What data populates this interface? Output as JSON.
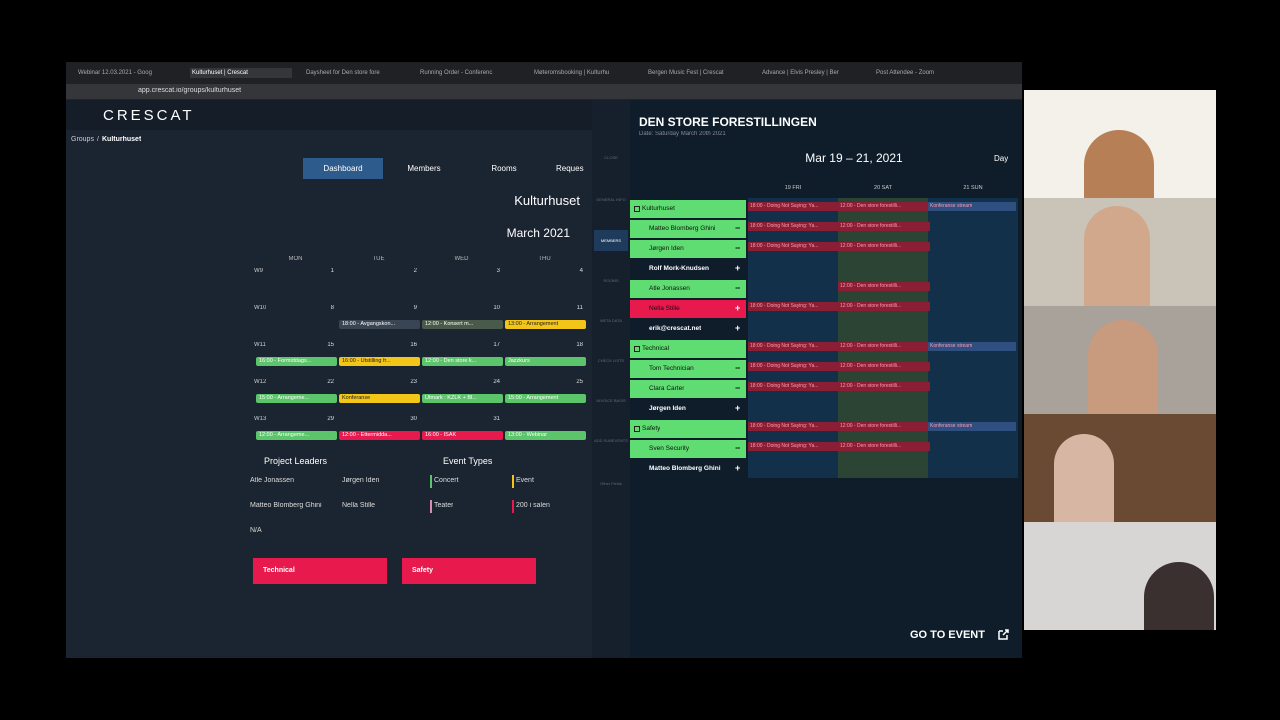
{
  "browser": {
    "tabs": [
      "Webinar 12.03.2021 - Goog",
      "Kulturhuset | Crescat",
      "Daysheet for Den store fore",
      "Running Order - Conferenc",
      "Møteromsbooking | Kulturhu",
      "Bergen Music Fest | Crescat",
      "Advance | Elvis Presley | Ber",
      "Post Attendee - Zoom"
    ],
    "url": "app.crescat.io/groups/kulturhuset"
  },
  "app": {
    "logo": "CRESCAT",
    "breadcrumb": {
      "parent": "Groups",
      "separator": "/",
      "current": "Kulturhuset"
    },
    "nav": [
      "Dashboard",
      "Members",
      "Rooms",
      "Reques"
    ],
    "group_title": "Kulturhuset"
  },
  "calendar": {
    "month": "March 2021",
    "days": [
      "MON",
      "TUE",
      "WED",
      "THU"
    ],
    "weeks": [
      {
        "label": "W9",
        "dates": [
          "1",
          "2",
          "3",
          "4"
        ],
        "events": [
          null,
          null,
          null,
          null
        ]
      },
      {
        "label": "W10",
        "dates": [
          "8",
          "9",
          "10",
          "11"
        ],
        "events": [
          null,
          {
            "text": "18:00 - Avgangskon...",
            "color": "#3a4554"
          },
          {
            "text": "12:00 - Konsert m...",
            "color": "#4a5a4a"
          },
          {
            "text": "13:00 - Arrangement",
            "color": "#f2c518"
          }
        ]
      },
      {
        "label": "W11",
        "dates": [
          "15",
          "16",
          "17",
          "18"
        ],
        "events": [
          {
            "text": "16:00 - Formiddags...",
            "color": "#5cc46a"
          },
          {
            "text": "16:00 - Utstilling fr...",
            "color": "#f2c518"
          },
          {
            "text": "12:00 - Den store k...",
            "color": "#5cc46a"
          },
          {
            "text": "Jazzkurs",
            "color": "#5cc46a"
          }
        ]
      },
      {
        "label": "W12",
        "dates": [
          "22",
          "23",
          "24",
          "25"
        ],
        "events": [
          {
            "text": "15:00 - Arrangeme...",
            "color": "#5cc46a"
          },
          {
            "text": "Konferanse",
            "color": "#f2c518"
          },
          {
            "text": "Utmark : KZLK + Bl...",
            "color": "#5cc46a"
          },
          {
            "text": "15:00 - Arrangement",
            "color": "#5cc46a"
          }
        ]
      },
      {
        "label": "W13",
        "dates": [
          "29",
          "30",
          "31",
          ""
        ],
        "events": [
          {
            "text": "12:00 - Arrangeme...",
            "color": "#5cc46a"
          },
          {
            "text": "12:00 - Ettermidda...",
            "color": "#e8194d"
          },
          {
            "text": "16:00 - ISAK",
            "color": "#e8194d"
          },
          {
            "text": "13:00 - Webinar",
            "color": "#5cc46a"
          }
        ]
      }
    ]
  },
  "project_leaders": {
    "title": "Project Leaders",
    "names": [
      "Atle Jonassen",
      "Jørgen Iden",
      "Matteo Blomberg Ghini",
      "Nella Stille",
      "N/A"
    ]
  },
  "event_types": {
    "title": "Event Types",
    "items": [
      {
        "name": "Concert",
        "color": "#5cc46a"
      },
      {
        "name": "Event",
        "color": "#f2c518"
      },
      {
        "name": "Teater",
        "color": "#d88ab8"
      },
      {
        "name": "200 i salen",
        "color": "#e8194d"
      }
    ]
  },
  "buttons": [
    "Technical",
    "Safety"
  ],
  "sidebar": [
    "CLOSE",
    "GENERAL INFO",
    "MEMBERS",
    "ROOMS",
    "META DATA",
    "CHECK LISTS",
    "INVOICE BASIS",
    "ADD SUBEVENTS",
    "Other Fields"
  ],
  "event_panel": {
    "title": "DEN STORE FORESTILLINGEN",
    "date": "Date: Saturday March 20th 2021",
    "range": "Mar 19 – 21, 2021",
    "view": "Day",
    "days": [
      "19 FRI",
      "20 SAT",
      "21 SUN"
    ],
    "rows": [
      {
        "name": "Kulturhuset",
        "group": true,
        "color": "#5fdc72",
        "sign": "",
        "cells": [
          {
            "text": "18:00 - Doing Not Saying: Ya...",
            "color": "#8a1e35"
          },
          {
            "text": "12:00 - Den store forestilli...",
            "color": "#8a1e35"
          },
          {
            "text": "Konferanse stream",
            "color": "#2e4f80"
          }
        ]
      },
      {
        "name": "Matteo Blomberg Ghini",
        "group": false,
        "color": "#5fdc72",
        "sign": "−",
        "cells": [
          {
            "text": "18:00 - Doing Not Saying: Ya...",
            "color": "#8a1e35"
          },
          {
            "text": "12:00 - Den store forestilli...",
            "color": "#8a1e35"
          },
          null
        ]
      },
      {
        "name": "Jørgen Iden",
        "group": false,
        "color": "#5fdc72",
        "sign": "−",
        "cells": [
          {
            "text": "18:00 - Doing Not Saying: Ya...",
            "color": "#8a1e35"
          },
          {
            "text": "12:00 - Den store forestilli...",
            "color": "#8a1e35"
          },
          null
        ]
      },
      {
        "name": "Rolf Mork-Knudsen",
        "group": false,
        "color": "#0f1d2b",
        "sign": "+",
        "cells": [
          null,
          null,
          null
        ]
      },
      {
        "name": "Atle Jonassen",
        "group": false,
        "color": "#5fdc72",
        "sign": "−",
        "cells": [
          null,
          {
            "text": "12:00 - Den store forestilli...",
            "color": "#8a1e35"
          },
          null
        ]
      },
      {
        "name": "Nella Stille",
        "group": false,
        "color": "#e8194d",
        "sign": "+",
        "cells": [
          {
            "text": "18:00 - Doing Not Saying: Ya...",
            "color": "#8a1e35"
          },
          {
            "text": "12:00 - Den store forestilli...",
            "color": "#8a1e35"
          },
          null
        ]
      },
      {
        "name": "erik@crescat.net",
        "group": false,
        "color": "#0f1d2b",
        "sign": "+",
        "cells": [
          null,
          null,
          null
        ]
      },
      {
        "name": "Technical",
        "group": true,
        "color": "#5fdc72",
        "sign": "",
        "cells": [
          {
            "text": "18:00 - Doing Not Saying: Ya...",
            "color": "#8a1e35"
          },
          {
            "text": "12:00 - Den store forestilli...",
            "color": "#8a1e35"
          },
          {
            "text": "Konferanse stream",
            "color": "#2e4f80"
          }
        ]
      },
      {
        "name": "Tom Technician",
        "group": false,
        "color": "#5fdc72",
        "sign": "−",
        "cells": [
          {
            "text": "18:00 - Doing Not Saying: Ya...",
            "color": "#8a1e35"
          },
          {
            "text": "12:00 - Den store forestilli...",
            "color": "#8a1e35"
          },
          null
        ]
      },
      {
        "name": "Clara Carter",
        "group": false,
        "color": "#5fdc72",
        "sign": "−",
        "cells": [
          {
            "text": "18:00 - Doing Not Saying: Ya...",
            "color": "#8a1e35"
          },
          {
            "text": "12:00 - Den store forestilli...",
            "color": "#8a1e35"
          },
          null
        ]
      },
      {
        "name": "Jørgen Iden",
        "group": false,
        "color": "#0f1d2b",
        "sign": "+",
        "cells": [
          null,
          null,
          null
        ]
      },
      {
        "name": "Safety",
        "group": true,
        "color": "#5fdc72",
        "sign": "",
        "cells": [
          {
            "text": "18:00 - Doing Not Saying: Ya...",
            "color": "#8a1e35"
          },
          {
            "text": "12:00 - Den store forestilli...",
            "color": "#8a1e35"
          },
          {
            "text": "Konferanse stream",
            "color": "#2e4f80"
          }
        ]
      },
      {
        "name": "Sven Security",
        "group": false,
        "color": "#5fdc72",
        "sign": "−",
        "cells": [
          {
            "text": "18:00 - Doing Not Saying: Ya...",
            "color": "#8a1e35"
          },
          {
            "text": "12:00 - Den store forestilli...",
            "color": "#8a1e35"
          },
          null
        ]
      },
      {
        "name": "Matteo Blomberg Ghini",
        "group": false,
        "color": "#0f1d2b",
        "sign": "+",
        "cells": [
          null,
          null,
          null
        ]
      }
    ],
    "go": "GO TO EVENT"
  }
}
